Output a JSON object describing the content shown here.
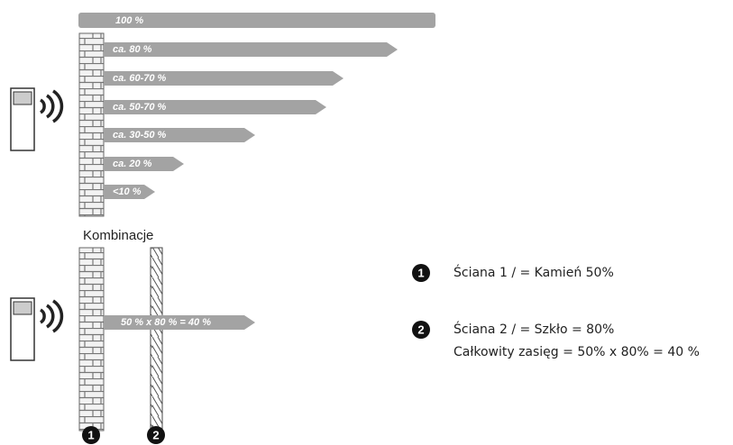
{
  "top_bar": {
    "label": "100 %"
  },
  "arrows": [
    {
      "label": "ca. 80 %"
    },
    {
      "label": "ca. 60-70 %"
    },
    {
      "label": "ca. 50-70 %"
    },
    {
      "label": "ca. 30-50 %"
    },
    {
      "label": "ca. 20 %"
    },
    {
      "label": "<10 %"
    }
  ],
  "section_title": "Kombinacje",
  "combination": {
    "arrow_label": "50 % x 80 % = 40 %",
    "markers": [
      "1",
      "2"
    ]
  },
  "legend": [
    {
      "marker": "1",
      "lines": [
        "Ściana 1 / = Kamień 50%"
      ]
    },
    {
      "marker": "2",
      "lines": [
        "Ściana 2 / = Szkło = 80%",
        "Całkowity zasięg  = 50% x 80% = 40 %"
      ]
    }
  ]
}
